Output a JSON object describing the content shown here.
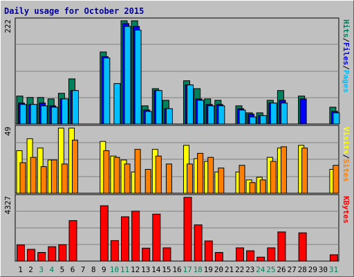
{
  "chart_data": {
    "type": "bar",
    "title": "Daily usage for October 2015",
    "days": [
      "1",
      "2",
      "3",
      "4",
      "5",
      "6",
      "7",
      "8",
      "9",
      "10",
      "11",
      "12",
      "13",
      "14",
      "15",
      "16",
      "17",
      "18",
      "19",
      "20",
      "21",
      "22",
      "23",
      "24",
      "25",
      "26",
      "27",
      "28",
      "29",
      "30",
      "31"
    ],
    "weekend_days": [
      3,
      4,
      10,
      11,
      17,
      18,
      24,
      25,
      31
    ],
    "colors": {
      "background": "#c0c0c0",
      "title": "#0000a0",
      "hits": "#00805c",
      "files": "#0000ff",
      "pages": "#00c0ff",
      "visits": "#ffff00",
      "sites": "#ff8000",
      "kbytes": "#ff0000",
      "weekend_label": "#00805c",
      "weekday_label": "#000000"
    },
    "panels": [
      {
        "id": "hits",
        "ymax_label": "222",
        "ymax": 222,
        "right_label": [
          {
            "text": "Pages",
            "color": "#00c0ff"
          },
          {
            "text": "/",
            "color": "#000000"
          },
          {
            "text": "Files",
            "color": "#0000ff"
          },
          {
            "text": "/",
            "color": "#000000"
          },
          {
            "text": "Hits",
            "color": "#00805c"
          }
        ],
        "series": [
          {
            "name": "Hits",
            "color": "#00805c",
            "values": [
              60,
              57,
              57,
              54,
              66,
              97,
              0,
              0,
              155,
              0,
              222,
              222,
              39,
              76,
              51,
              0,
              93,
              76,
              54,
              51,
              0,
              39,
              24,
              24,
              51,
              72,
              0,
              60,
              0,
              0,
              36
            ]
          },
          {
            "name": "Files",
            "color": "#0000ff",
            "values": [
              45,
              42,
              45,
              39,
              54,
              72,
              0,
              0,
              145,
              0,
              216,
              210,
              30,
              72,
              33,
              0,
              84,
              54,
              42,
              42,
              0,
              33,
              21,
              18,
              45,
              51,
              0,
              54,
              0,
              0,
              27
            ]
          },
          {
            "name": "Pages",
            "color": "#00c0ff",
            "values": [
              42,
              42,
              39,
              36,
              54,
              72,
              0,
              0,
              142,
              87,
              210,
              202,
              27,
              72,
              33,
              0,
              84,
              51,
              39,
              39,
              0,
              30,
              15,
              18,
              45,
              45,
              0,
              0,
              0,
              0,
              24
            ]
          }
        ]
      },
      {
        "id": "visits",
        "ymax_label": "49",
        "ymax": 49,
        "right_label": [
          {
            "text": "Sites",
            "color": "#ff8000"
          },
          {
            "text": "/",
            "color": "#000000"
          },
          {
            "text": "Visits",
            "color": "#ffff00"
          }
        ],
        "series": [
          {
            "name": "Visits",
            "color": "#ffff00",
            "values": [
              32,
              41,
              34,
              25,
              49,
              49,
              0,
              0,
              39,
              28,
              25,
              16,
              0,
              33,
              0,
              0,
              36,
              26,
              24,
              16,
              0,
              16,
              10,
              12,
              27,
              34,
              0,
              36,
              0,
              0,
              18
            ]
          },
          {
            "name": "Sites",
            "color": "#ff8000",
            "values": [
              23,
              27,
              20,
              25,
              22,
              40,
              0,
              0,
              32,
              27,
              22,
              33,
              18,
              28,
              22,
              0,
              22,
              30,
              27,
              19,
              0,
              21,
              8,
              10,
              24,
              35,
              0,
              34,
              0,
              0,
              21
            ]
          }
        ]
      },
      {
        "id": "kbytes",
        "ymax_label": "4327",
        "ymax": 4327,
        "right_label": [
          {
            "text": "KBytes",
            "color": "#ff0000"
          }
        ],
        "series": [
          {
            "name": "KBytes",
            "color": "#ff0000",
            "values": [
              1090,
              800,
              590,
              980,
              1110,
              2750,
              0,
              0,
              3760,
              1390,
              3010,
              3390,
              880,
              3190,
              900,
              0,
              4327,
              2460,
              1370,
              590,
              0,
              900,
              700,
              270,
              900,
              1980,
              0,
              1920,
              0,
              0,
              430
            ]
          }
        ]
      }
    ]
  }
}
